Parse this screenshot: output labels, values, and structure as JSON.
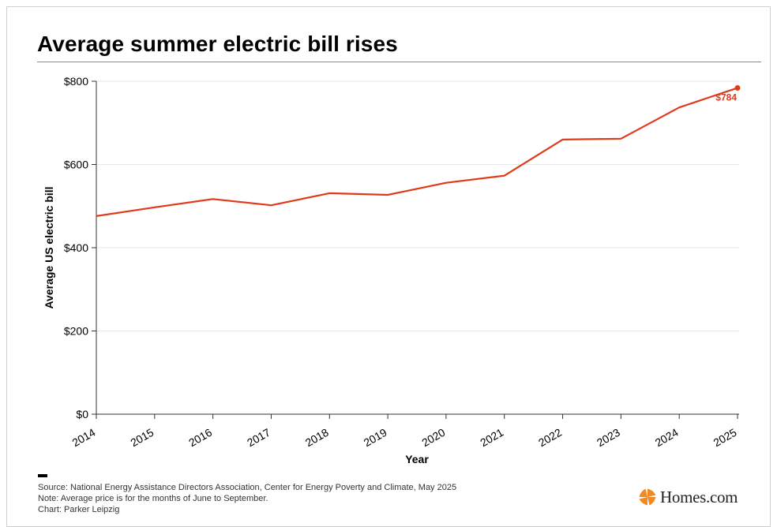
{
  "title": "Average summer electric bill rises",
  "chart_data": {
    "type": "line",
    "title": "Average summer electric bill rises",
    "xlabel": "Year",
    "ylabel": "Average US electric bill",
    "categories": [
      "2014",
      "2015",
      "2016",
      "2017",
      "2018",
      "2019",
      "2020",
      "2021",
      "2022",
      "2023",
      "2024",
      "2025"
    ],
    "series": [
      {
        "color": "#e03a1b",
        "values": [
          476,
          497,
          517,
          502,
          531,
          527,
          556,
          573,
          660,
          662,
          737,
          784
        ]
      }
    ],
    "ylim": [
      0,
      800
    ],
    "y_ticks": [
      0,
      200,
      400,
      600,
      800
    ],
    "y_tick_labels": [
      "$0",
      "$200",
      "$400",
      "$600",
      "$800"
    ],
    "end_label": "$784",
    "grid": true
  },
  "footer": {
    "source": "Source: National Energy Assistance Directors Association, Center for Energy Poverty and Climate, May 2025",
    "note": "Note: Average price is for the months of June to September.",
    "credit": "Chart: Parker Leipzig"
  },
  "brand": {
    "name": "Homes.com",
    "icon": "homes-logo-icon",
    "color": "#f08a24"
  }
}
